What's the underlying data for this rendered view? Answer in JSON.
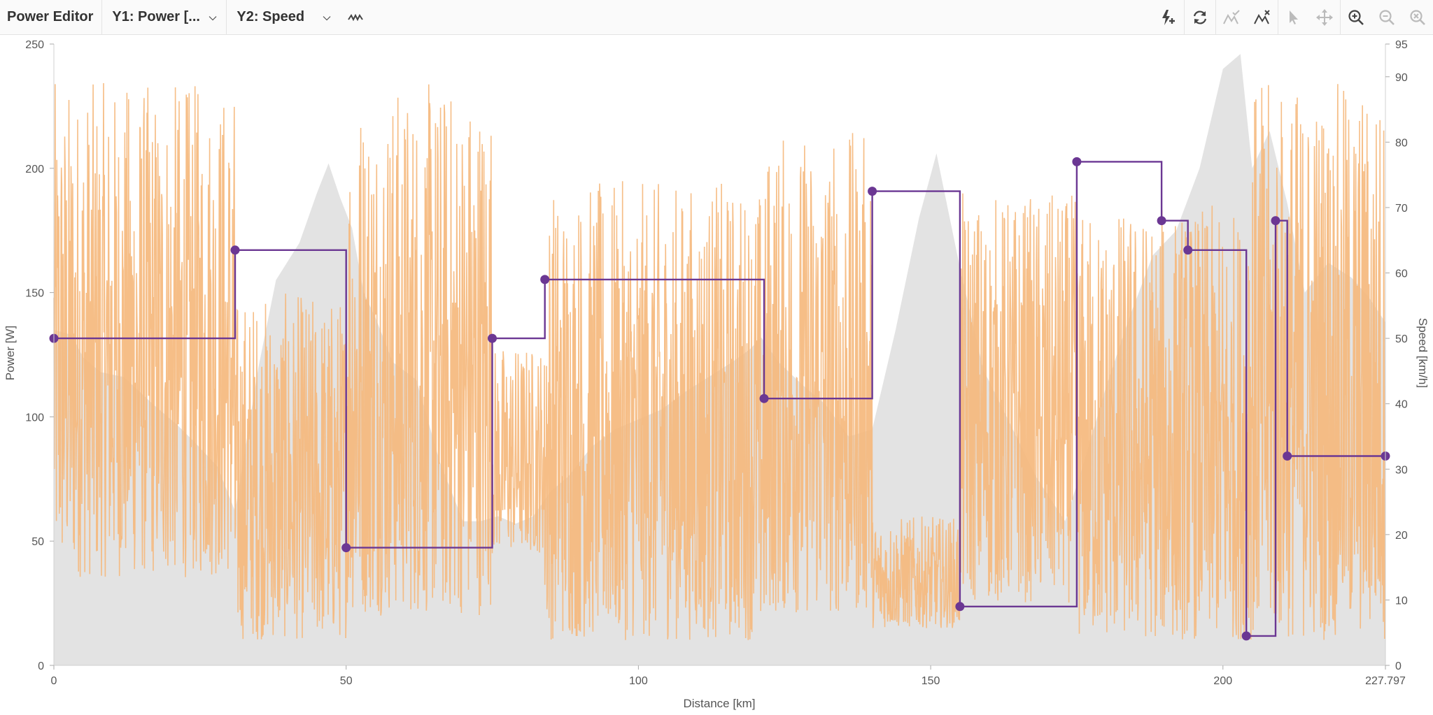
{
  "toolbar": {
    "title": "Power Editor",
    "y1_select": "Y1: Power [...",
    "y2_select": "Y2: Speed",
    "icons": [
      "waveform-icon",
      "add-power-icon",
      "refresh-icon",
      "accept-peaks-icon",
      "reject-peaks-icon",
      "cursor-icon",
      "move-icon",
      "zoom-in-icon",
      "zoom-out-icon",
      "zoom-reset-icon"
    ]
  },
  "chart_data": {
    "type": "line",
    "xlabel": "Distance [km]",
    "ylabel": "Power [W]",
    "y2label": "Speed [km/h]",
    "xlim": [
      0,
      227.797
    ],
    "ylim": [
      0,
      250
    ],
    "y2lim": [
      0,
      95
    ],
    "x_ticks": [
      "0",
      "50",
      "100",
      "150",
      "200",
      "227.797"
    ],
    "y_ticks": [
      "0",
      "50",
      "100",
      "150",
      "200",
      "250"
    ],
    "y2_ticks": [
      "0",
      "10",
      "20",
      "30",
      "40",
      "50",
      "60",
      "70",
      "80",
      "90",
      "95"
    ],
    "colors": {
      "elevation": "#e3e3e3",
      "power": "#f5b77a",
      "target": "#6b3793"
    },
    "elevation_profile": {
      "x": [
        0,
        3,
        5,
        8,
        12,
        17,
        21,
        24,
        28,
        31,
        35,
        38,
        42,
        45,
        47,
        49,
        51,
        53,
        55,
        58,
        62,
        66,
        70,
        73,
        76,
        79,
        82,
        85,
        88,
        92,
        96,
        100,
        104,
        108,
        112,
        116,
        119,
        121,
        124,
        128,
        132,
        136,
        140,
        144,
        148,
        151,
        155,
        159,
        163,
        168,
        173,
        176,
        180,
        184,
        188,
        192,
        196,
        200,
        203,
        205,
        208,
        211,
        214,
        218,
        222,
        225,
        227.797
      ],
      "y": [
        135,
        133,
        124,
        118,
        116,
        105,
        97,
        90,
        80,
        62,
        120,
        155,
        170,
        190,
        202,
        188,
        176,
        150,
        140,
        122,
        115,
        82,
        58,
        58,
        60,
        57,
        60,
        70,
        76,
        88,
        95,
        99,
        103,
        110,
        116,
        122,
        127,
        132,
        122,
        113,
        105,
        92,
        95,
        135,
        180,
        206,
        160,
        119,
        100,
        76,
        58,
        80,
        112,
        140,
        165,
        175,
        200,
        240,
        246,
        200,
        215,
        186,
        150,
        162,
        156,
        148,
        138
      ]
    },
    "power": {
      "segments": [
        {
          "x0": 0,
          "x1": 31,
          "min": 35,
          "max": 235
        },
        {
          "x0": 31,
          "x1": 50,
          "min": 10,
          "max": 150
        },
        {
          "x0": 50,
          "x1": 75,
          "min": 20,
          "max": 235
        },
        {
          "x0": 75,
          "x1": 84,
          "min": 45,
          "max": 130
        },
        {
          "x0": 84,
          "x1": 122,
          "min": 10,
          "max": 195
        },
        {
          "x0": 122,
          "x1": 140,
          "min": 20,
          "max": 215
        },
        {
          "x0": 140,
          "x1": 155,
          "min": 15,
          "max": 60
        },
        {
          "x0": 155,
          "x1": 175,
          "min": 25,
          "max": 190
        },
        {
          "x0": 175,
          "x1": 204,
          "min": 10,
          "max": 185
        },
        {
          "x0": 204,
          "x1": 227.797,
          "min": 10,
          "max": 235
        }
      ]
    },
    "target_speed": {
      "x": [
        0,
        31,
        50,
        75,
        84,
        121.5,
        140,
        155,
        175,
        189.5,
        194,
        204,
        209,
        211,
        227.797
      ],
      "y": [
        50,
        63.5,
        18,
        50,
        59,
        40.8,
        72.5,
        9,
        77,
        68,
        63.5,
        4.5,
        68,
        32,
        32
      ]
    }
  }
}
